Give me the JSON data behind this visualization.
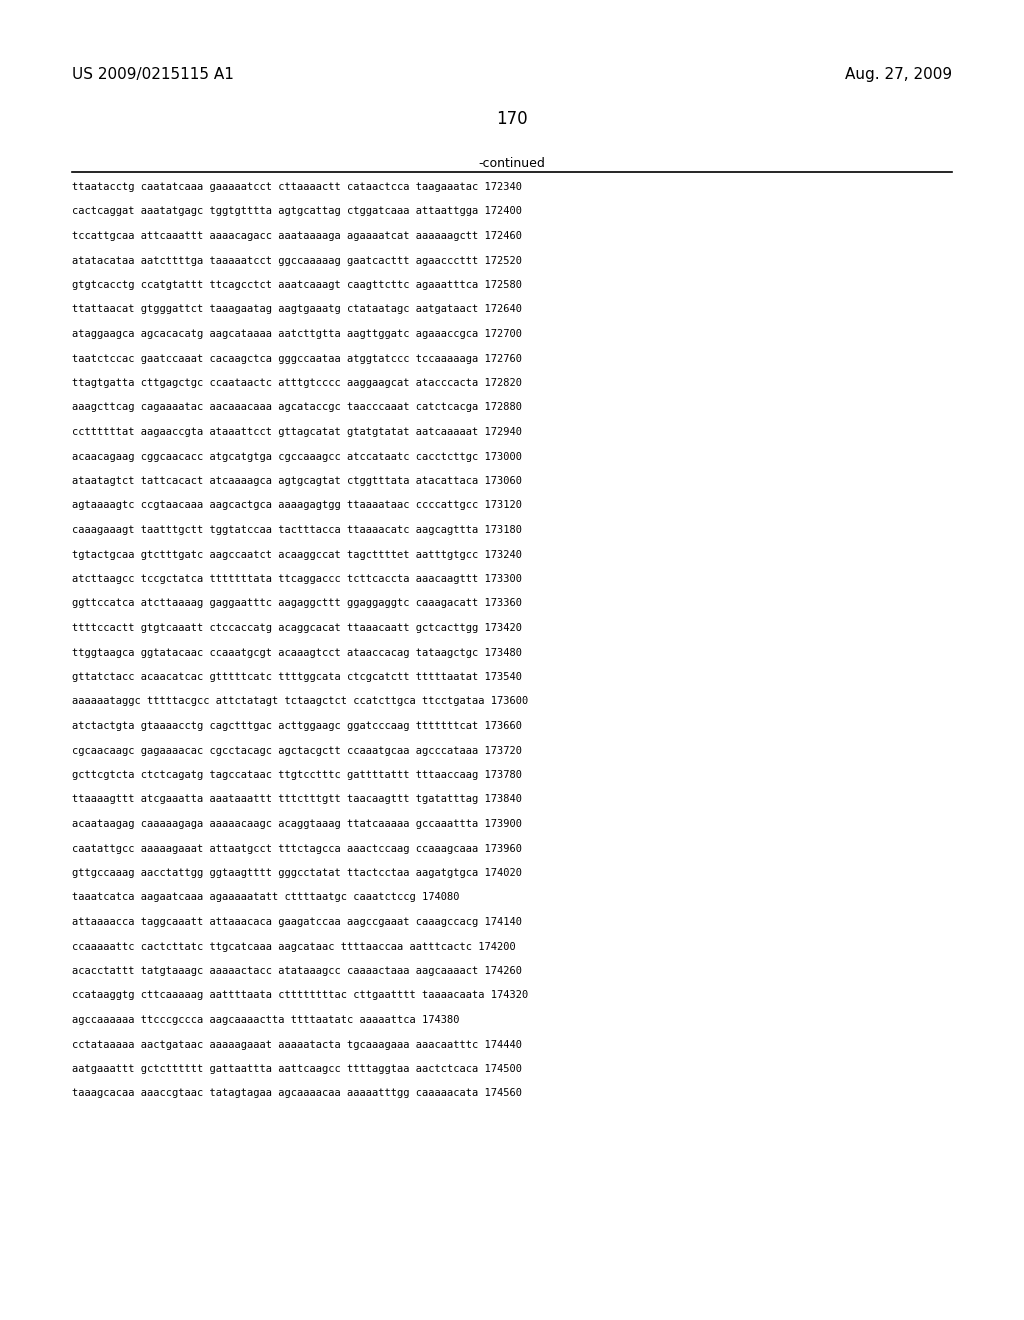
{
  "header_left": "US 2009/0215115 A1",
  "header_right": "Aug. 27, 2009",
  "page_number": "170",
  "continued_label": "-continued",
  "background_color": "#ffffff",
  "text_color": "#000000",
  "lines": [
    "ttaatacctg caatatcaaa gaaaaatcct cttaaaactt cataactcca taagaaatac 172340",
    "cactcaggat aaatatgagc tggtgtttta agtgcattag ctggatcaaa attaattgga 172400",
    "tccattgcaa attcaaattt aaaacagacc aaataaaaga agaaaatcat aaaaaagctt 172460",
    "atatacataa aatcttttga taaaaatcct ggccaaaaag gaatcacttt agaacccttt 172520",
    "gtgtcacctg ccatgtattt ttcagcctct aaatcaaagt caagttcttc agaaatttca 172580",
    "ttattaacat gtgggattct taaagaatag aagtgaaatg ctataatagc aatgataact 172640",
    "ataggaagca agcacacatg aagcataaaa aatcttgtta aagttggatc agaaaccgca 172700",
    "taatctccac gaatccaaat cacaagctca gggccaataa atggtatccc tccaaaaaga 172760",
    "ttagtgatta cttgagctgc ccaataactc atttgtcccc aaggaagcat atacccacta 172820",
    "aaagcttcag cagaaaatac aacaaacaaa agcataccgc taacccaaat catctcacga 172880",
    "ccttttttat aagaaccgta ataaattcct gttagcatat gtatgtatat aatcaaaaat 172940",
    "acaacagaag cggcaacacc atgcatgtga cgccaaagcc atccataatc cacctcttgc 173000",
    "ataatagtct tattcacact atcaaaagca agtgcagtat ctggtttata atacattaca 173060",
    "agtaaaagtc ccgtaacaaa aagcactgca aaaagagtgg ttaaaataac ccccattgcc 173120",
    "caaagaaagt taatttgctt tggtatccaa tactttacca ttaaaacatc aagcagttta 173180",
    "tgtactgcaa gtctttgatc aagccaatct acaaggccat tagcttttet aatttgtgcc 173240",
    "atcttaagcc tccgctatca tttttttata ttcaggaccc tcttcaccta aaacaagttt 173300",
    "ggttccatca atcttaaaag gaggaatttc aagaggcttt ggaggaggtc caaagacatt 173360",
    "ttttccactt gtgtcaaatt ctccaccatg acaggcacat ttaaacaatt gctcacttgg 173420",
    "ttggtaagca ggtatacaac ccaaatgcgt acaaagtcct ataaccacag tataagctgc 173480",
    "gttatctacc acaacatcac gtttttcatc ttttggcata ctcgcatctt tttttaatat 173540",
    "aaaaaataggc tttttacgcc attctatagt tctaagctct ccatcttgca ttcctgataa 173600",
    "atctactgta gtaaaacctg cagctttgac acttggaagc ggatcccaag tttttttcat 173660",
    "cgcaacaagc gagaaaacac cgcctacagc agctacgctt ccaaatgcaa agcccataaa 173720",
    "gcttcgtcta ctctcagatg tagccataac ttgtcctttc gattttattt tttaaccaag 173780",
    "ttaaaagttt atcgaaatta aaataaattt tttctttgtt taacaagttt tgatatttag 173840",
    "acaataagag caaaaagaga aaaaacaagc acaggtaaag ttatcaaaaa gccaaattta 173900",
    "caatattgcc aaaaagaaat attaatgcct tttctagcca aaactccaag ccaaagcaaa 173960",
    "gttgccaaag aacctattgg ggtaagtttt gggcctatat ttactcctaa aagatgtgca 174020",
    "taaatcatca aagaatcaaa agaaaaatatt cttttaatgc caaatctccg 174080",
    "attaaaacca taggcaaatt attaaacaca gaagatccaa aagccgaaat caaagccacg 174140",
    "ccaaaaattc cactcttatc ttgcatcaaa aagcataac ttttaaccaa aatttcactc 174200",
    "acacctattt tatgtaaagc aaaaactacc atataaagcc caaaactaaa aagcaaaact 174260",
    "ccataaggtg cttcaaaaag aattttaata cttttttttac cttgaatttt taaaacaata 174320",
    "agccaaaaaa ttcccgccca aagcaaaactta ttttaatatc aaaaattca 174380",
    "cctataaaaa aactgataac aaaaagaaat aaaaatacta tgcaaagaaa aaacaatttc 174440",
    "aatgaaattt gctctttttt gattaattta aattcaagcc ttttaggtaa aactctcaca 174500",
    "taaagcacaa aaaccgtaac tatagtagaa agcaaaacaa aaaaatttgg caaaaacata 174560"
  ]
}
